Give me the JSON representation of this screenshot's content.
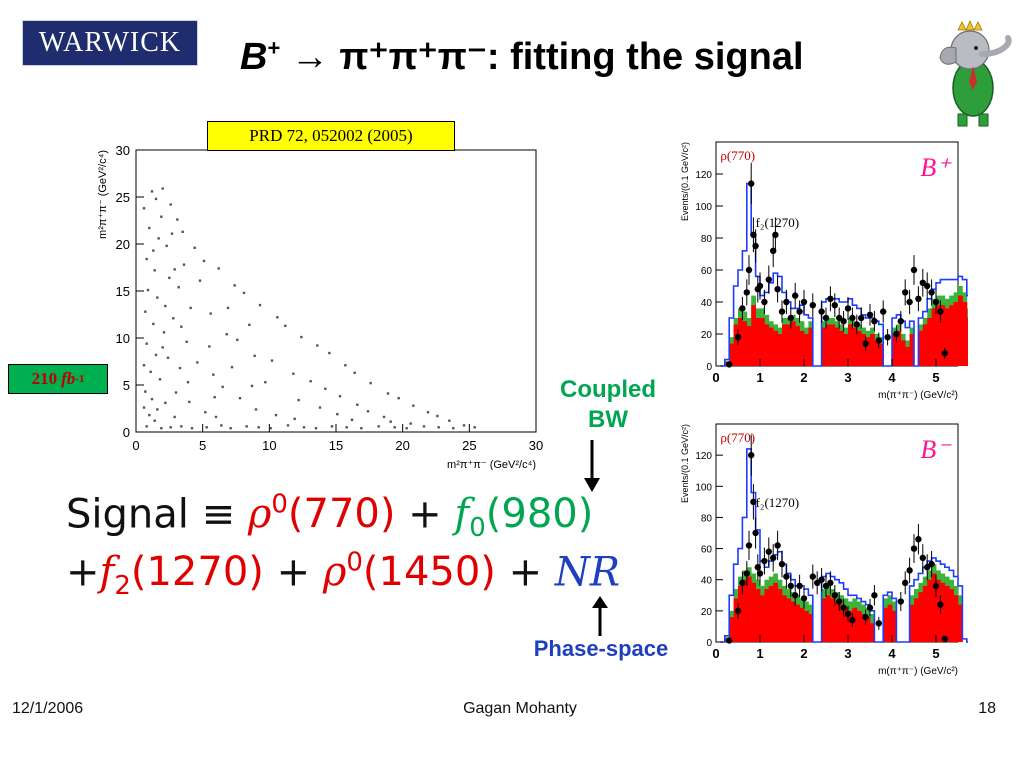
{
  "header": {
    "logo_text": "WARWICK",
    "title_b": "B",
    "title_b_charge": "+",
    "title_rest": "→ π⁺π⁺π⁻: fitting the signal"
  },
  "reference": "PRD 72, 052002 (2005)",
  "luminosity": {
    "value": "210",
    "unit": "fb",
    "unit_exp": "-1"
  },
  "annotations": {
    "coupled": "Coupled",
    "bw": "BW",
    "phase_space": "Phase-space"
  },
  "formula": {
    "signal": "Signal",
    "equiv": "≡",
    "rho": "ρ",
    "rho_sup": "0",
    "rho_mass": "(770)",
    "plus": "+",
    "f0": "f",
    "f0_sub": "0",
    "f0_mass": "(980)",
    "f2": "f",
    "f2_sub": "2",
    "f2_mass": "(1270)",
    "rho2": "ρ",
    "rho2_sup": "0",
    "rho2_mass": "(1450)",
    "nr": "NR"
  },
  "footer": {
    "date": "12/1/2006",
    "author": "Gagan Mohanty",
    "page": "18"
  },
  "colors": {
    "title": "#000000",
    "ref_box": "#ffff00",
    "lumi_box": "#00b050",
    "coupled_text": "#00a651",
    "phase_text": "#1f3fbf",
    "rho_color": "#e00000",
    "f0_color": "#00a651",
    "f2_color": "#e00000",
    "nr_color": "#1f3fbf",
    "hist_fill_red": "#ff0000",
    "hist_fill_green": "#3cb43c",
    "hist_line_blue": "#1e3cff"
  },
  "chart_data": [
    {
      "type": "scatter",
      "xlabel": "m²π⁺π⁻ (GeV²/c⁴)",
      "ylabel": "m²π⁺π⁻ (GeV²/c⁴)",
      "x_ticks": [
        "0",
        "5",
        "10",
        "15",
        "20",
        "25",
        "30"
      ],
      "y_ticks": [
        "0",
        "5",
        "10",
        "15",
        "20",
        "25",
        "30"
      ],
      "xlim": [
        0,
        30
      ],
      "ylim": [
        0,
        30
      ],
      "points": [
        [
          1.2,
          25.6
        ],
        [
          1.5,
          24.8
        ],
        [
          2.0,
          25.9
        ],
        [
          2.6,
          24.2
        ],
        [
          3.1,
          22.6
        ],
        [
          0.6,
          23.8
        ],
        [
          1.0,
          21.7
        ],
        [
          1.7,
          20.6
        ],
        [
          2.3,
          19.8
        ],
        [
          0.8,
          18.4
        ],
        [
          1.4,
          17.2
        ],
        [
          2.5,
          16.4
        ],
        [
          0.9,
          15.1
        ],
        [
          1.6,
          14.3
        ],
        [
          0.7,
          12.8
        ],
        [
          1.3,
          11.5
        ],
        [
          2.1,
          10.6
        ],
        [
          0.8,
          9.4
        ],
        [
          1.5,
          8.2
        ],
        [
          0.6,
          7.1
        ],
        [
          1.1,
          6.4
        ],
        [
          1.8,
          5.6
        ],
        [
          0.7,
          4.3
        ],
        [
          1.2,
          3.5
        ],
        [
          0.6,
          2.6
        ],
        [
          1.0,
          1.8
        ],
        [
          1.4,
          1.2
        ],
        [
          0.8,
          0.6
        ],
        [
          1.9,
          0.4
        ],
        [
          2.6,
          0.5
        ],
        [
          3.4,
          0.6
        ],
        [
          4.2,
          0.4
        ],
        [
          5.3,
          0.5
        ],
        [
          6.4,
          0.7
        ],
        [
          7.1,
          0.4
        ],
        [
          8.3,
          0.6
        ],
        [
          9.2,
          0.5
        ],
        [
          10.1,
          0.4
        ],
        [
          11.4,
          0.7
        ],
        [
          12.6,
          0.5
        ],
        [
          13.5,
          0.4
        ],
        [
          14.7,
          0.6
        ],
        [
          15.8,
          0.5
        ],
        [
          16.9,
          0.4
        ],
        [
          18.2,
          0.6
        ],
        [
          19.4,
          0.5
        ],
        [
          20.3,
          0.4
        ],
        [
          21.6,
          0.6
        ],
        [
          22.7,
          0.5
        ],
        [
          23.8,
          0.4
        ],
        [
          24.6,
          0.7
        ],
        [
          25.4,
          0.5
        ],
        [
          3.5,
          21.3
        ],
        [
          4.4,
          19.6
        ],
        [
          5.1,
          18.2
        ],
        [
          6.2,
          17.4
        ],
        [
          7.4,
          15.6
        ],
        [
          8.1,
          14.8
        ],
        [
          9.3,
          13.5
        ],
        [
          10.6,
          12.2
        ],
        [
          11.2,
          11.3
        ],
        [
          12.4,
          10.1
        ],
        [
          13.6,
          9.2
        ],
        [
          14.5,
          8.4
        ],
        [
          15.7,
          7.1
        ],
        [
          16.4,
          6.3
        ],
        [
          17.6,
          5.2
        ],
        [
          18.9,
          4.1
        ],
        [
          19.7,
          3.6
        ],
        [
          20.8,
          2.8
        ],
        [
          21.9,
          2.1
        ],
        [
          22.6,
          1.7
        ],
        [
          23.5,
          1.2
        ],
        [
          3.2,
          15.4
        ],
        [
          4.1,
          13.2
        ],
        [
          5.6,
          12.6
        ],
        [
          6.8,
          10.4
        ],
        [
          7.6,
          9.8
        ],
        [
          8.9,
          8.1
        ],
        [
          10.2,
          7.6
        ],
        [
          11.8,
          6.2
        ],
        [
          13.1,
          5.4
        ],
        [
          14.2,
          4.6
        ],
        [
          15.3,
          3.8
        ],
        [
          16.6,
          2.9
        ],
        [
          17.4,
          2.2
        ],
        [
          18.6,
          1.6
        ],
        [
          3.8,
          9.6
        ],
        [
          4.6,
          7.4
        ],
        [
          5.8,
          6.1
        ],
        [
          6.5,
          4.8
        ],
        [
          7.8,
          3.6
        ],
        [
          9.0,
          2.4
        ],
        [
          10.5,
          1.8
        ],
        [
          11.9,
          1.4
        ],
        [
          4.0,
          3.2
        ],
        [
          5.2,
          2.1
        ],
        [
          6.0,
          1.6
        ],
        [
          2.8,
          12.1
        ],
        [
          3.3,
          6.8
        ],
        [
          2.2,
          13.4
        ],
        [
          3.6,
          17.8
        ],
        [
          4.8,
          16.1
        ],
        [
          5.5,
          9.1
        ],
        [
          6.9,
          13.2
        ],
        [
          8.5,
          11.4
        ],
        [
          9.7,
          5.3
        ],
        [
          12.2,
          3.4
        ],
        [
          13.8,
          2.6
        ],
        [
          15.1,
          1.9
        ],
        [
          16.2,
          1.3
        ],
        [
          19.1,
          1.1
        ],
        [
          20.6,
          0.9
        ],
        [
          2.4,
          7.9
        ],
        [
          3.0,
          4.2
        ],
        [
          3.9,
          5.3
        ],
        [
          5.9,
          3.7
        ],
        [
          7.2,
          6.9
        ],
        [
          8.7,
          4.9
        ],
        [
          1.9,
          22.9
        ],
        [
          2.7,
          21.1
        ],
        [
          1.3,
          19.3
        ],
        [
          2.9,
          17.3
        ],
        [
          3.4,
          11.2
        ],
        [
          2.0,
          9.0
        ],
        [
          2.2,
          3.1
        ],
        [
          2.9,
          1.6
        ],
        [
          1.6,
          2.4
        ]
      ]
    },
    {
      "type": "bar",
      "title": "B⁺",
      "xlabel": "m(π⁺π⁻) (GeV/c²)",
      "ylabel": "Events/(0.1 GeV/c²)",
      "xlim": [
        0,
        5.5
      ],
      "ylim": [
        0,
        140
      ],
      "x_ticks": [
        "0",
        "1",
        "2",
        "3",
        "4",
        "5"
      ],
      "y_ticks": [
        "0",
        "20",
        "40",
        "60",
        "80",
        "100",
        "120"
      ],
      "annotations": [
        "ρ(770)",
        "f₂(1270)"
      ],
      "series": [
        {
          "name": "red",
          "values": [
            0,
            2,
            14,
            26,
            30,
            28,
            25,
            38,
            30,
            30,
            26,
            24,
            22,
            20,
            26,
            26,
            28,
            25,
            22,
            20,
            24,
            0,
            0,
            24,
            26,
            26,
            24,
            22,
            20,
            26,
            24,
            22,
            20,
            18,
            20,
            16,
            14,
            0,
            0,
            20,
            22,
            16,
            12,
            20,
            0,
            22,
            26,
            30,
            36,
            38,
            38,
            36,
            38,
            40,
            44,
            40,
            30,
            0
          ]
        },
        {
          "name": "green",
          "values": [
            0,
            3,
            18,
            30,
            36,
            34,
            30,
            44,
            36,
            36,
            32,
            28,
            26,
            24,
            30,
            30,
            32,
            30,
            28,
            24,
            28,
            0,
            0,
            28,
            30,
            30,
            28,
            26,
            24,
            30,
            28,
            26,
            24,
            22,
            24,
            20,
            18,
            0,
            0,
            24,
            26,
            20,
            16,
            24,
            0,
            26,
            30,
            36,
            42,
            44,
            44,
            42,
            44,
            46,
            50,
            46,
            36,
            0
          ]
        },
        {
          "name": "fit",
          "values": [
            0,
            4,
            30,
            50,
            60,
            72,
            114,
            82,
            56,
            44,
            46,
            52,
            58,
            56,
            46,
            40,
            36,
            36,
            38,
            32,
            30,
            0,
            0,
            40,
            42,
            42,
            42,
            40,
            40,
            42,
            38,
            36,
            32,
            30,
            30,
            28,
            26,
            0,
            0,
            30,
            32,
            28,
            24,
            28,
            0,
            30,
            34,
            42,
            48,
            52,
            54,
            54,
            54,
            54,
            56,
            54,
            44,
            2
          ]
        }
      ],
      "data_points": [
        [
          0.3,
          1
        ],
        [
          0.5,
          18
        ],
        [
          0.6,
          36
        ],
        [
          0.7,
          46
        ],
        [
          0.75,
          60
        ],
        [
          0.8,
          114
        ],
        [
          0.85,
          82
        ],
        [
          0.9,
          75
        ],
        [
          0.95,
          48
        ],
        [
          1.0,
          50
        ],
        [
          1.1,
          40
        ],
        [
          1.2,
          54
        ],
        [
          1.3,
          72
        ],
        [
          1.35,
          82
        ],
        [
          1.4,
          48
        ],
        [
          1.5,
          34
        ],
        [
          1.6,
          40
        ],
        [
          1.7,
          30
        ],
        [
          1.8,
          44
        ],
        [
          1.9,
          34
        ],
        [
          2.0,
          40
        ],
        [
          2.2,
          38
        ],
        [
          2.4,
          34
        ],
        [
          2.5,
          30
        ],
        [
          2.6,
          42
        ],
        [
          2.7,
          38
        ],
        [
          2.8,
          30
        ],
        [
          2.9,
          28
        ],
        [
          3.0,
          36
        ],
        [
          3.1,
          30
        ],
        [
          3.2,
          26
        ],
        [
          3.3,
          30
        ],
        [
          3.4,
          14
        ],
        [
          3.5,
          32
        ],
        [
          3.6,
          28
        ],
        [
          3.7,
          16
        ],
        [
          3.8,
          34
        ],
        [
          3.9,
          18
        ],
        [
          4.1,
          20
        ],
        [
          4.2,
          28
        ],
        [
          4.3,
          46
        ],
        [
          4.4,
          40
        ],
        [
          4.5,
          60
        ],
        [
          4.6,
          42
        ],
        [
          4.7,
          52
        ],
        [
          4.8,
          50
        ],
        [
          4.9,
          46
        ],
        [
          5.0,
          40
        ],
        [
          5.1,
          34
        ],
        [
          5.2,
          8
        ]
      ]
    },
    {
      "type": "bar",
      "title": "B⁻",
      "xlabel": "m(π⁺π⁻) (GeV/c²)",
      "ylabel": "Events/(0.1 GeV/c²)",
      "xlim": [
        0,
        5.5
      ],
      "ylim": [
        0,
        140
      ],
      "x_ticks": [
        "0",
        "1",
        "2",
        "3",
        "4",
        "5"
      ],
      "y_ticks": [
        "0",
        "20",
        "40",
        "60",
        "80",
        "100",
        "120"
      ],
      "annotations": [
        "ρ(770)",
        "f₂(1270)"
      ],
      "series": [
        {
          "name": "red",
          "values": [
            0,
            2,
            16,
            28,
            36,
            40,
            42,
            38,
            34,
            30,
            34,
            36,
            38,
            34,
            30,
            28,
            26,
            24,
            22,
            20,
            18,
            0,
            0,
            28,
            30,
            28,
            26,
            24,
            22,
            20,
            22,
            20,
            18,
            16,
            12,
            0,
            0,
            22,
            24,
            20,
            0,
            0,
            0,
            24,
            28,
            32,
            36,
            40,
            44,
            40,
            38,
            36,
            34,
            30,
            24,
            0,
            0,
            0
          ]
        },
        {
          "name": "green",
          "values": [
            0,
            3,
            20,
            34,
            42,
            46,
            48,
            44,
            40,
            36,
            40,
            42,
            44,
            40,
            36,
            34,
            32,
            30,
            28,
            26,
            24,
            0,
            0,
            34,
            36,
            34,
            32,
            30,
            28,
            26,
            28,
            26,
            24,
            22,
            18,
            0,
            0,
            28,
            30,
            26,
            0,
            0,
            0,
            30,
            34,
            38,
            42,
            46,
            50,
            46,
            44,
            42,
            40,
            36,
            30,
            0,
            0,
            0
          ]
        },
        {
          "name": "fit",
          "values": [
            0,
            4,
            30,
            50,
            60,
            80,
            124,
            96,
            72,
            52,
            48,
            52,
            56,
            58,
            50,
            44,
            40,
            36,
            36,
            34,
            30,
            0,
            0,
            42,
            44,
            42,
            40,
            38,
            34,
            30,
            30,
            28,
            26,
            24,
            20,
            0,
            0,
            30,
            32,
            28,
            0,
            0,
            0,
            36,
            40,
            44,
            48,
            52,
            54,
            52,
            50,
            48,
            46,
            42,
            36,
            2,
            0,
            0
          ]
        }
      ],
      "data_points": [
        [
          0.3,
          1
        ],
        [
          0.5,
          20
        ],
        [
          0.6,
          38
        ],
        [
          0.7,
          44
        ],
        [
          0.75,
          62
        ],
        [
          0.8,
          120
        ],
        [
          0.85,
          90
        ],
        [
          0.9,
          70
        ],
        [
          0.95,
          48
        ],
        [
          1.0,
          44
        ],
        [
          1.1,
          52
        ],
        [
          1.2,
          58
        ],
        [
          1.3,
          54
        ],
        [
          1.4,
          62
        ],
        [
          1.5,
          50
        ],
        [
          1.6,
          42
        ],
        [
          1.7,
          36
        ],
        [
          1.8,
          30
        ],
        [
          1.9,
          36
        ],
        [
          2.0,
          28
        ],
        [
          2.2,
          42
        ],
        [
          2.3,
          38
        ],
        [
          2.4,
          40
        ],
        [
          2.5,
          36
        ],
        [
          2.6,
          38
        ],
        [
          2.7,
          30
        ],
        [
          2.8,
          26
        ],
        [
          2.9,
          22
        ],
        [
          3.0,
          18
        ],
        [
          3.1,
          14
        ],
        [
          3.4,
          16
        ],
        [
          3.5,
          22
        ],
        [
          3.6,
          30
        ],
        [
          3.7,
          12
        ],
        [
          4.2,
          26
        ],
        [
          4.3,
          38
        ],
        [
          4.4,
          46
        ],
        [
          4.5,
          60
        ],
        [
          4.6,
          66
        ],
        [
          4.7,
          54
        ],
        [
          4.8,
          48
        ],
        [
          4.9,
          50
        ],
        [
          5.0,
          36
        ],
        [
          5.1,
          24
        ],
        [
          5.2,
          2
        ]
      ]
    }
  ]
}
